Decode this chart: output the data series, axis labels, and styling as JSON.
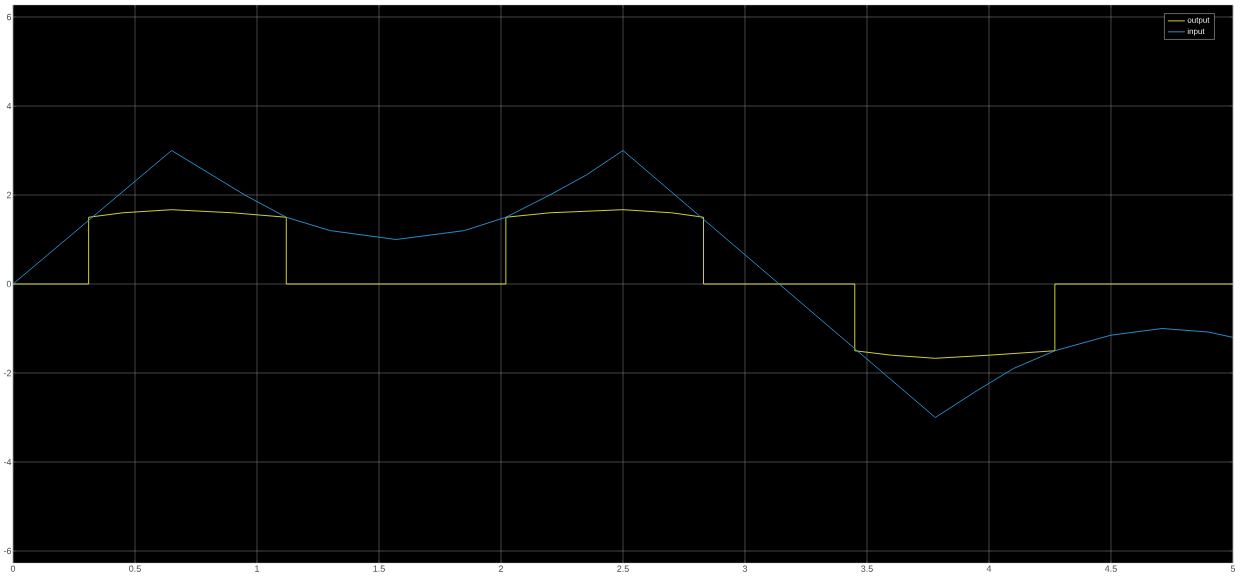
{
  "chart_data": {
    "type": "line",
    "xlim": [
      0,
      5
    ],
    "ylim": [
      -6.27,
      6.27
    ],
    "xticks": [
      0,
      0.5,
      1,
      1.5,
      2,
      2.5,
      3,
      3.5,
      4,
      4.5,
      5
    ],
    "yticks": [
      -6,
      -4,
      -2,
      0,
      2,
      4,
      6
    ],
    "grid": true,
    "legend": "top right",
    "series": [
      {
        "name": "output",
        "color": "#e8e83a",
        "x": [
          0,
          0.31,
          0.31,
          0.45,
          0.65,
          0.9,
          1.12,
          1.12,
          2.02,
          2.02,
          2.2,
          2.5,
          2.7,
          2.83,
          2.83,
          3.45,
          3.45,
          3.6,
          3.78,
          4.0,
          4.27,
          4.27,
          5
        ],
        "values": [
          0,
          0,
          1.5,
          1.6,
          1.67,
          1.6,
          1.5,
          0,
          0,
          1.5,
          1.6,
          1.67,
          1.6,
          1.5,
          0,
          0,
          -1.5,
          -1.6,
          -1.67,
          -1.6,
          -1.5,
          0,
          0
        ]
      },
      {
        "name": "input",
        "color": "#2b9be0",
        "x": [
          0,
          0.65,
          0.8,
          0.95,
          1.12,
          1.3,
          1.57,
          1.85,
          2.02,
          2.2,
          2.35,
          2.5,
          3.78,
          3.95,
          4.1,
          4.27,
          4.5,
          4.71,
          4.9,
          5
        ],
        "values": [
          0,
          3,
          2.5,
          2.0,
          1.5,
          1.2,
          1.0,
          1.2,
          1.5,
          2.0,
          2.45,
          3,
          -3,
          -2.4,
          -1.9,
          -1.5,
          -1.15,
          -1.0,
          -1.08,
          -1.2
        ]
      }
    ]
  }
}
